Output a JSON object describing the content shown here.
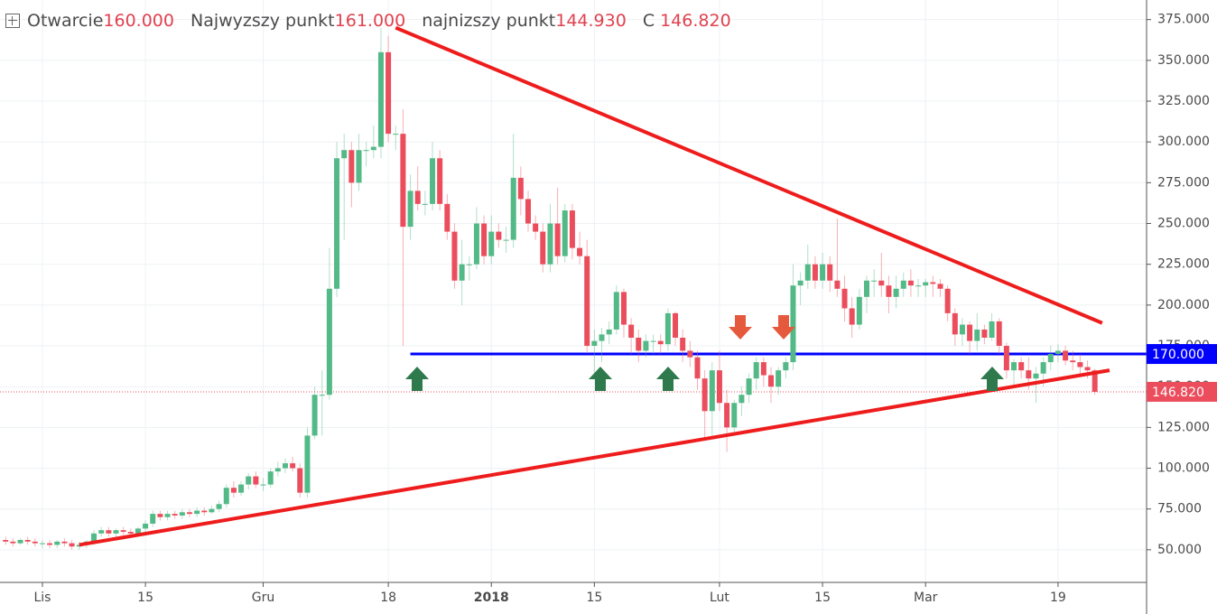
{
  "chart_data": {
    "type": "candlestick",
    "ohlc_names": {
      "open": "Otwarcie",
      "high": "Najwyzszy punkt",
      "low": "najnizszy punkt",
      "close": "C"
    },
    "last_labels": {
      "open": "160.000",
      "high": "161.000",
      "low": "144.930",
      "close": "146.820"
    },
    "up_color": "#53b987",
    "down_color": "#eb4d5c",
    "categories": [
      null,
      null,
      null,
      null,
      null,
      "Lis",
      null,
      null,
      null,
      null,
      null,
      null,
      null,
      null,
      null,
      null,
      null,
      null,
      null,
      "15",
      null,
      null,
      null,
      null,
      null,
      null,
      null,
      null,
      null,
      null,
      null,
      null,
      null,
      null,
      null,
      "Gru",
      null,
      null,
      null,
      null,
      null,
      null,
      null,
      null,
      null,
      null,
      null,
      null,
      null,
      null,
      null,
      null,
      "18",
      null,
      null,
      null,
      null,
      null,
      null,
      null,
      null,
      null,
      null,
      null,
      null,
      null,
      "2018",
      null,
      null,
      null,
      null,
      null,
      null,
      null,
      null,
      null,
      null,
      null,
      null,
      null,
      "15",
      null,
      null,
      null,
      null,
      null,
      null,
      null,
      null,
      null,
      null,
      null,
      null,
      null,
      null,
      null,
      null,
      "Lut",
      null,
      null,
      null,
      null,
      null,
      null,
      null,
      null,
      null,
      null,
      null,
      null,
      null,
      "15",
      null,
      null,
      null,
      null,
      null,
      null,
      null,
      null,
      null,
      null,
      null,
      null,
      null,
      "Mar",
      null,
      null,
      null,
      null,
      null,
      null,
      null,
      null,
      null,
      null,
      null,
      null,
      null,
      null,
      null,
      null,
      null,
      "19",
      null,
      null,
      null,
      null,
      null
    ],
    "open": [
      56,
      55,
      54,
      56,
      55,
      54,
      54,
      53,
      55,
      54,
      52,
      53,
      55,
      60,
      62,
      60,
      62,
      61,
      60,
      63,
      66,
      72,
      70,
      72,
      71,
      73,
      72,
      74,
      73,
      75,
      78,
      88,
      85,
      90,
      95,
      90,
      90,
      98,
      100,
      103,
      100,
      85,
      120,
      145,
      145,
      210,
      290,
      295,
      275,
      295,
      295,
      297,
      355,
      305,
      305,
      248,
      270,
      262,
      262,
      290,
      262,
      245,
      215,
      225,
      225,
      250,
      230,
      245,
      240,
      240,
      278,
      265,
      250,
      245,
      225,
      250,
      230,
      258,
      235,
      230,
      175,
      178,
      182,
      185,
      208,
      188,
      180,
      172,
      178,
      178,
      176,
      195,
      180,
      172,
      168,
      155,
      135,
      160,
      140,
      125,
      140,
      145,
      155,
      165,
      157,
      150,
      160,
      165,
      212,
      215,
      225,
      215,
      225,
      215,
      210,
      198,
      188,
      205,
      215,
      215,
      212,
      205,
      210,
      215,
      212,
      212,
      214,
      213,
      210,
      195,
      182,
      188,
      178,
      185,
      180,
      190,
      175,
      160,
      165,
      160,
      155,
      158,
      165,
      170,
      172,
      166,
      165,
      162,
      160
    ],
    "high": [
      58,
      57,
      57,
      58,
      57,
      56,
      56,
      56,
      57,
      56,
      55,
      56,
      62,
      64,
      64,
      63,
      64,
      63,
      64,
      68,
      74,
      74,
      74,
      74,
      75,
      75,
      76,
      76,
      77,
      80,
      90,
      92,
      92,
      97,
      98,
      94,
      100,
      104,
      106,
      107,
      103,
      125,
      150,
      160,
      235,
      300,
      305,
      300,
      305,
      300,
      310,
      370,
      365,
      310,
      320,
      280,
      285,
      270,
      300,
      295,
      268,
      250,
      240,
      230,
      260,
      255,
      255,
      250,
      248,
      305,
      285,
      270,
      255,
      250,
      262,
      272,
      262,
      262,
      245,
      240,
      185,
      186,
      190,
      212,
      210,
      192,
      185,
      182,
      182,
      182,
      198,
      196,
      185,
      178,
      172,
      160,
      165,
      172,
      148,
      142,
      150,
      158,
      168,
      168,
      162,
      162,
      168,
      225,
      220,
      237,
      230,
      232,
      230,
      253,
      218,
      205,
      210,
      218,
      222,
      232,
      218,
      218,
      220,
      222,
      216,
      216,
      218,
      216,
      212,
      198,
      192,
      190,
      195,
      188,
      195,
      192,
      177,
      167,
      168,
      168,
      162,
      168,
      175,
      176,
      175,
      172,
      170,
      166,
      161
    ],
    "low": [
      53,
      52,
      53,
      53,
      52,
      51,
      51,
      51,
      52,
      50,
      50,
      51,
      53,
      58,
      58,
      58,
      59,
      58,
      58,
      61,
      64,
      68,
      68,
      69,
      69,
      70,
      70,
      71,
      72,
      73,
      76,
      82,
      83,
      87,
      88,
      86,
      88,
      95,
      97,
      98,
      82,
      82,
      118,
      120,
      142,
      205,
      240,
      260,
      270,
      285,
      290,
      290,
      300,
      295,
      175,
      240,
      258,
      255,
      258,
      258,
      240,
      210,
      200,
      215,
      222,
      225,
      225,
      235,
      232,
      235,
      255,
      245,
      240,
      220,
      220,
      225,
      226,
      228,
      225,
      170,
      155,
      165,
      176,
      182,
      180,
      170,
      165,
      168,
      170,
      170,
      172,
      175,
      165,
      162,
      148,
      118,
      120,
      135,
      110,
      120,
      132,
      140,
      148,
      150,
      140,
      145,
      155,
      160,
      200,
      210,
      210,
      210,
      208,
      205,
      190,
      180,
      185,
      195,
      205,
      205,
      195,
      198,
      205,
      205,
      205,
      205,
      205,
      205,
      190,
      175,
      175,
      170,
      172,
      176,
      178,
      170,
      155,
      150,
      155,
      148,
      140,
      150,
      160,
      165,
      163,
      160,
      158,
      155,
      144.93
    ],
    "close": [
      55,
      54,
      56,
      55,
      54,
      54,
      53,
      55,
      54,
      52,
      53,
      55,
      60,
      62,
      60,
      62,
      61,
      60,
      63,
      66,
      72,
      70,
      72,
      71,
      73,
      72,
      74,
      73,
      75,
      78,
      88,
      85,
      90,
      95,
      90,
      90,
      98,
      100,
      103,
      100,
      85,
      120,
      145,
      145,
      210,
      290,
      295,
      275,
      295,
      295,
      297,
      355,
      305,
      305,
      248,
      270,
      262,
      262,
      290,
      262,
      245,
      215,
      225,
      225,
      250,
      230,
      245,
      240,
      240,
      278,
      265,
      250,
      245,
      225,
      250,
      230,
      258,
      235,
      230,
      175,
      178,
      182,
      185,
      208,
      188,
      180,
      172,
      178,
      178,
      176,
      195,
      180,
      172,
      168,
      155,
      135,
      160,
      140,
      125,
      140,
      145,
      155,
      165,
      157,
      150,
      160,
      165,
      212,
      215,
      225,
      215,
      225,
      215,
      210,
      198,
      188,
      205,
      215,
      215,
      212,
      205,
      210,
      215,
      212,
      212,
      214,
      213,
      210,
      195,
      182,
      188,
      178,
      185,
      180,
      190,
      175,
      160,
      165,
      160,
      155,
      158,
      165,
      170,
      172,
      166,
      165,
      162,
      160,
      146.82
    ],
    "ylim": [
      30,
      387
    ],
    "yticks": [
      {
        "value": 50,
        "label": "50.000"
      },
      {
        "value": 75,
        "label": "75.000"
      },
      {
        "value": 100,
        "label": "100.000"
      },
      {
        "value": 125,
        "label": "125.000"
      },
      {
        "value": 150,
        "label": "150.000"
      },
      {
        "value": 175,
        "label": "175.000"
      },
      {
        "value": 200,
        "label": "200.000"
      },
      {
        "value": 225,
        "label": "225.000"
      },
      {
        "value": 250,
        "label": "250.000"
      },
      {
        "value": 275,
        "label": "275.000"
      },
      {
        "value": 300,
        "label": "300.000"
      },
      {
        "value": 325,
        "label": "325.000"
      },
      {
        "value": 350,
        "label": "350.000"
      },
      {
        "value": 375,
        "label": "375.000"
      }
    ],
    "grid": true,
    "last_price": {
      "value": 146.82,
      "label": "146.820",
      "color": "#eb4d5c"
    },
    "hlines": [
      {
        "x0": 55,
        "value": 170,
        "label": "170.000",
        "color": "#0000ff"
      }
    ],
    "trendlines": [
      {
        "x": [
          53,
          149
        ],
        "y": [
          370,
          189
        ],
        "color": "#ee1c1c"
      },
      {
        "x": [
          10,
          150
        ],
        "y": [
          53,
          160
        ],
        "color": "#ee1c1c"
      }
    ]
  }
}
